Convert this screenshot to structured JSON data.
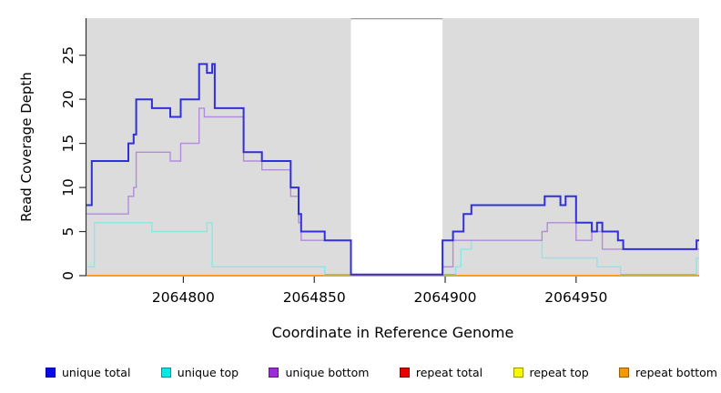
{
  "figure": {
    "xlabel": "Coordinate in Reference Genome",
    "ylabel": "Read Coverage Depth"
  },
  "chart_data": {
    "type": "line",
    "subtype": "step-coverage",
    "title": "",
    "xlabel": "Coordinate in Reference Genome",
    "ylabel": "Read Coverage Depth",
    "xlim": [
      2064763,
      2064997
    ],
    "ylim": [
      0,
      29.2
    ],
    "x_ticks": [
      "2064800",
      "2064850",
      "2064900",
      "2064950"
    ],
    "x_tick_values": [
      2064800,
      2064850,
      2064900,
      2064950
    ],
    "y_ticks": [
      "0",
      "5",
      "10",
      "15",
      "20",
      "25"
    ],
    "y_tick_values": [
      0,
      5,
      10,
      15,
      20,
      25
    ],
    "plot_bg": "#DCDCDC",
    "axis_color": "#333333",
    "grid": false,
    "legend_position": "bottom",
    "gap_region": {
      "from": 2064864,
      "to": 2064899,
      "fill": "#FFFFFF",
      "top_border": "#999999"
    },
    "series": [
      {
        "name": "repeat total",
        "color": "#DD2222",
        "width": 1.4,
        "lift_zero": false,
        "points": [
          [
            2064763,
            0
          ],
          [
            2064997,
            0
          ]
        ]
      },
      {
        "name": "repeat top",
        "color": "#F2F20A",
        "width": 1.4,
        "lift_zero": false,
        "points": [
          [
            2064763,
            0
          ],
          [
            2064997,
            0
          ]
        ]
      },
      {
        "name": "repeat bottom",
        "color": "#FF9E1B",
        "width": 1.9,
        "lift_zero": false,
        "points": [
          [
            2064763,
            0
          ],
          [
            2064997,
            0
          ]
        ]
      },
      {
        "name": "unique top",
        "color": "#86E9E4",
        "width": 1.4,
        "lift_zero": true,
        "points": [
          [
            2064763,
            1
          ],
          [
            2064766,
            6
          ],
          [
            2064788,
            5
          ],
          [
            2064809,
            6
          ],
          [
            2064811,
            1
          ],
          [
            2064854,
            0
          ],
          [
            2064899,
            0
          ],
          [
            2064904,
            1
          ],
          [
            2064906,
            3
          ],
          [
            2064910,
            4
          ],
          [
            2064937,
            2
          ],
          [
            2064958,
            1
          ],
          [
            2064967,
            0
          ],
          [
            2064996,
            2
          ],
          [
            2064997,
            2
          ]
        ]
      },
      {
        "name": "unique bottom",
        "color": "#B18BDC",
        "width": 1.4,
        "lift_zero": true,
        "points": [
          [
            2064763,
            7
          ],
          [
            2064779,
            9
          ],
          [
            2064781,
            10
          ],
          [
            2064782,
            14
          ],
          [
            2064795,
            13
          ],
          [
            2064799,
            15
          ],
          [
            2064806,
            19
          ],
          [
            2064808,
            18
          ],
          [
            2064823,
            13
          ],
          [
            2064830,
            12
          ],
          [
            2064841,
            9
          ],
          [
            2064844,
            6
          ],
          [
            2064845,
            4
          ],
          [
            2064864,
            0
          ],
          [
            2064899,
            1
          ],
          [
            2064903,
            4
          ],
          [
            2064937,
            5
          ],
          [
            2064939,
            6
          ],
          [
            2064950,
            4
          ],
          [
            2064956,
            5
          ],
          [
            2064960,
            3
          ],
          [
            2064997,
            3
          ]
        ]
      },
      {
        "name": "unique total",
        "color": "#3030D9",
        "width": 2,
        "lift_zero": true,
        "points": [
          [
            2064763,
            8
          ],
          [
            2064765,
            13
          ],
          [
            2064779,
            15
          ],
          [
            2064781,
            16
          ],
          [
            2064782,
            20
          ],
          [
            2064788,
            19
          ],
          [
            2064795,
            18
          ],
          [
            2064799,
            20
          ],
          [
            2064806,
            24
          ],
          [
            2064809,
            23
          ],
          [
            2064811,
            24
          ],
          [
            2064812,
            19
          ],
          [
            2064823,
            14
          ],
          [
            2064830,
            13
          ],
          [
            2064841,
            10
          ],
          [
            2064844,
            7
          ],
          [
            2064845,
            5
          ],
          [
            2064854,
            4
          ],
          [
            2064864,
            0
          ],
          [
            2064899,
            4
          ],
          [
            2064903,
            5
          ],
          [
            2064907,
            7
          ],
          [
            2064910,
            8
          ],
          [
            2064938,
            9
          ],
          [
            2064944,
            8
          ],
          [
            2064946,
            9
          ],
          [
            2064950,
            6
          ],
          [
            2064956,
            5
          ],
          [
            2064958,
            6
          ],
          [
            2064960,
            5
          ],
          [
            2064966,
            4
          ],
          [
            2064968,
            3
          ],
          [
            2064996,
            4
          ],
          [
            2064997,
            4
          ]
        ]
      }
    ],
    "zero_overlap": {
      "color": "#80D068",
      "segments": [
        [
          2064854,
          2064864
        ],
        [
          2064899,
          2064904
        ],
        [
          2064967,
          2064996
        ]
      ]
    }
  },
  "legend": {
    "items": [
      {
        "label": "unique total",
        "fill": "#0808EE",
        "border": "#000099"
      },
      {
        "label": "unique top",
        "fill": "#00E8E8",
        "border": "#009999"
      },
      {
        "label": "unique bottom",
        "fill": "#9D2BD6",
        "border": "#5E1A80"
      },
      {
        "label": "repeat total",
        "fill": "#E80000",
        "border": "#8B0000"
      },
      {
        "label": "repeat top",
        "fill": "#F8F800",
        "border": "#999900"
      },
      {
        "label": "repeat bottom",
        "fill": "#F89800",
        "border": "#995E00"
      }
    ]
  }
}
